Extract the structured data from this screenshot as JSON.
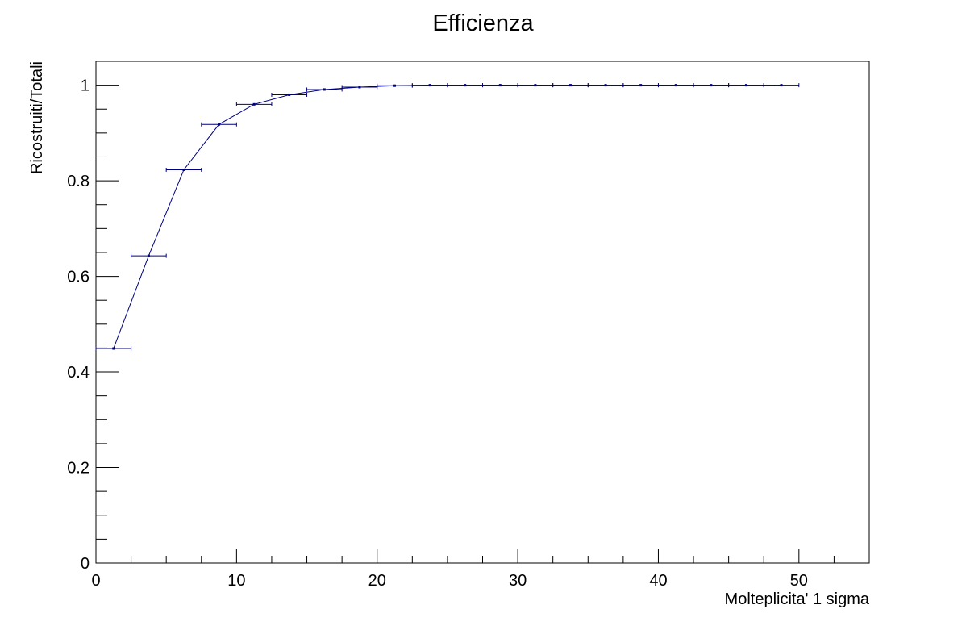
{
  "chart_data": {
    "type": "scatter",
    "title": "Efficienza",
    "xlabel": "Molteplicita' 1 sigma",
    "ylabel": "Ricostruiti/Totali",
    "xlim": [
      0,
      55
    ],
    "ylim": [
      0,
      1.05
    ],
    "x_ticks": [
      0,
      10,
      20,
      30,
      40,
      50
    ],
    "y_ticks": [
      0,
      0.2,
      0.4,
      0.6,
      0.8,
      1
    ],
    "x_tick_labels": [
      "0",
      "10",
      "20",
      "30",
      "40",
      "50"
    ],
    "y_tick_labels": [
      "0",
      "0.2",
      "0.4",
      "0.6",
      "0.8",
      "1"
    ],
    "grid": false,
    "line_color": "#000080",
    "series": [
      {
        "points": [
          {
            "x": 1.25,
            "xerr": 1.25,
            "y": 0.449
          },
          {
            "x": 3.75,
            "xerr": 1.25,
            "y": 0.643
          },
          {
            "x": 6.25,
            "xerr": 1.25,
            "y": 0.823
          },
          {
            "x": 8.75,
            "xerr": 1.25,
            "y": 0.918
          },
          {
            "x": 11.25,
            "xerr": 1.25,
            "y": 0.96
          },
          {
            "x": 13.75,
            "xerr": 1.25,
            "y": 0.98
          },
          {
            "x": 16.25,
            "xerr": 1.25,
            "y": 0.991
          },
          {
            "x": 18.75,
            "xerr": 1.25,
            "y": 0.996
          },
          {
            "x": 21.25,
            "xerr": 1.25,
            "y": 0.999
          },
          {
            "x": 23.75,
            "xerr": 1.25,
            "y": 1.0
          },
          {
            "x": 26.25,
            "xerr": 1.25,
            "y": 1.0
          },
          {
            "x": 28.75,
            "xerr": 1.25,
            "y": 1.0
          },
          {
            "x": 31.25,
            "xerr": 1.25,
            "y": 1.0
          },
          {
            "x": 33.75,
            "xerr": 1.25,
            "y": 1.0
          },
          {
            "x": 36.25,
            "xerr": 1.25,
            "y": 1.0
          },
          {
            "x": 38.75,
            "xerr": 1.25,
            "y": 1.0
          },
          {
            "x": 41.25,
            "xerr": 1.25,
            "y": 1.0
          },
          {
            "x": 43.75,
            "xerr": 1.25,
            "y": 1.0
          },
          {
            "x": 46.25,
            "xerr": 1.25,
            "y": 1.0
          },
          {
            "x": 48.75,
            "xerr": 1.25,
            "y": 1.0
          }
        ]
      }
    ]
  }
}
